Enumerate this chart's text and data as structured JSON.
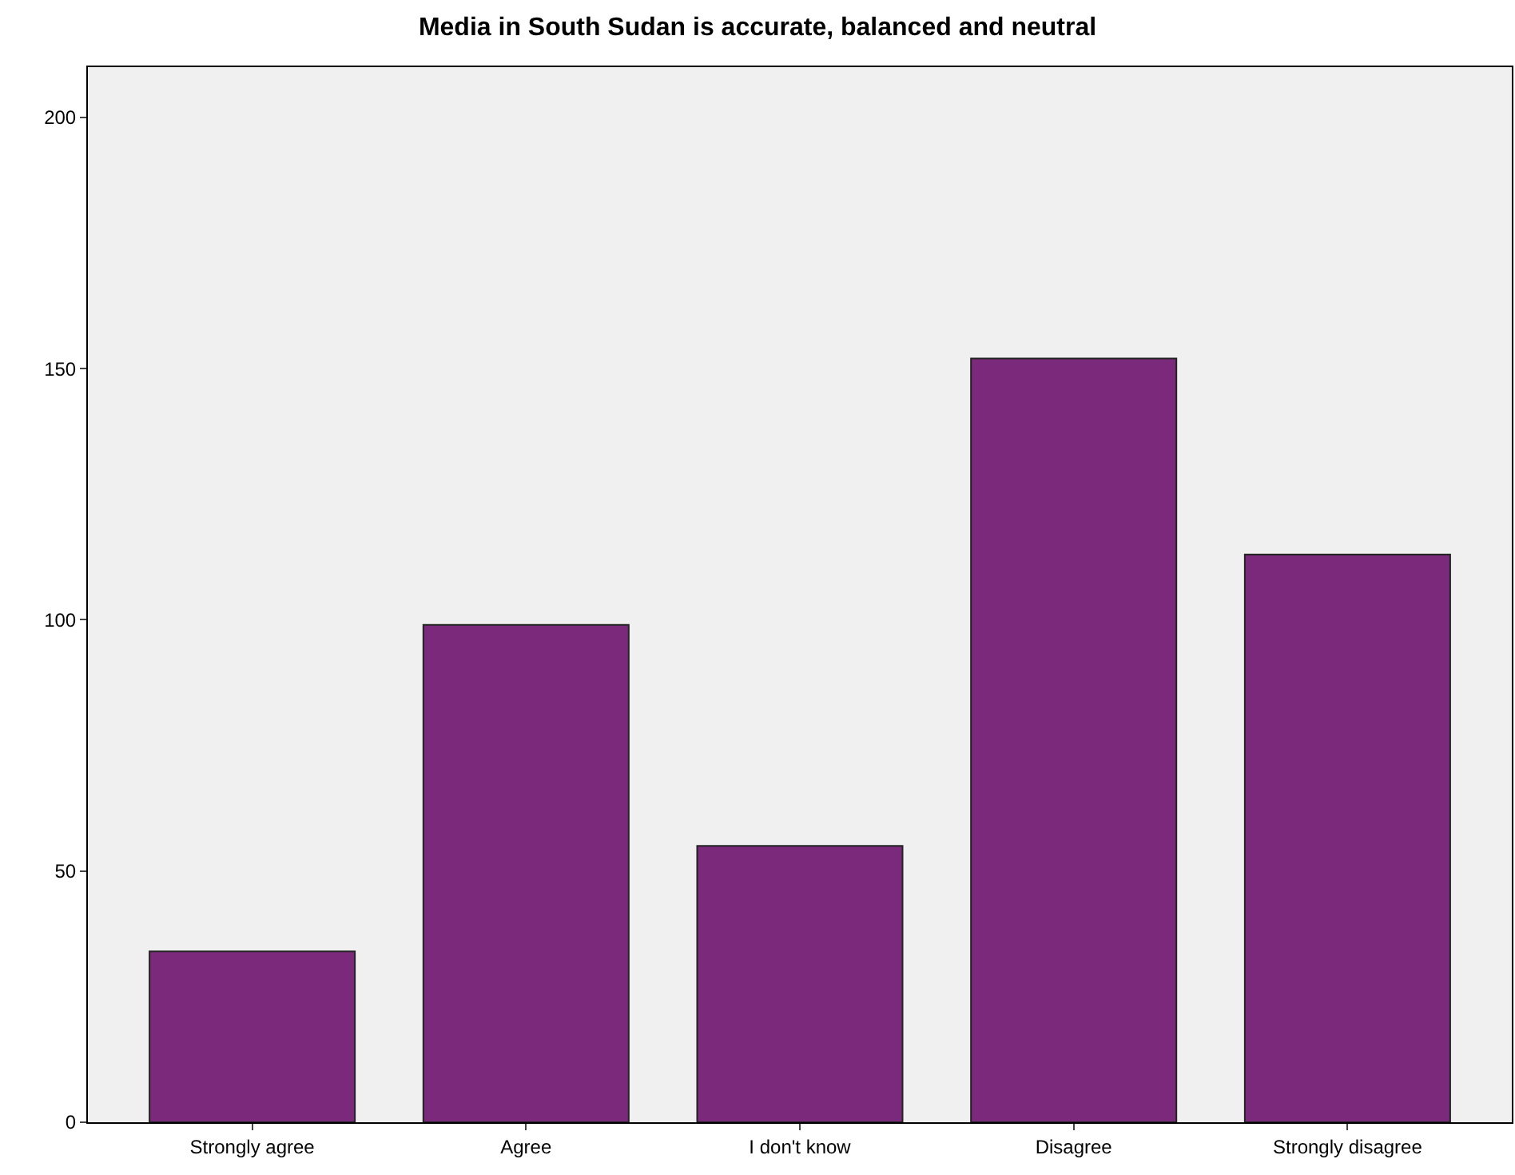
{
  "chart_data": {
    "type": "bar",
    "title": "Media in South Sudan is accurate, balanced and neutral",
    "categories": [
      "Strongly agree",
      "Agree",
      "I don't know",
      "Disagree",
      "Strongly disagree"
    ],
    "values": [
      34,
      99,
      55,
      152,
      113
    ],
    "color": "#7b2a7b",
    "ylim": [
      0,
      210
    ],
    "yticks": [
      0,
      50,
      100,
      150,
      200
    ],
    "grid": false
  }
}
